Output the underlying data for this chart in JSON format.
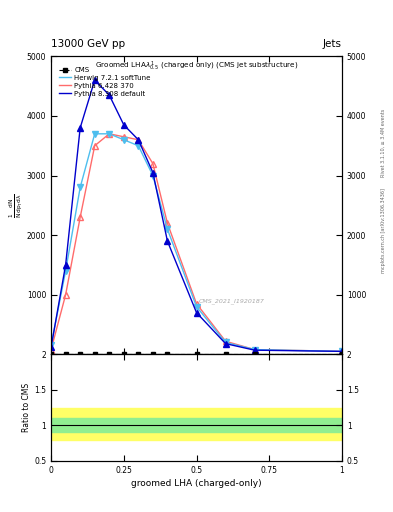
{
  "title_top": "13000 GeV pp",
  "title_right": "Jets",
  "watermark": "CMS_2021_I1920187",
  "xlabel": "groomed LHA (charged-only)",
  "ylabel_ratio": "Ratio to CMS",
  "right_label": "Rivet 3.1.10, ≥ 3.4M events",
  "right_label2": "mcplots.cern.ch [arXiv:1306.3436]",
  "x_plot": [
    0.0,
    0.05,
    0.1,
    0.15,
    0.2,
    0.25,
    0.3,
    0.35,
    0.4,
    0.5,
    0.6,
    0.7,
    1.0
  ],
  "herwig_y": [
    150,
    1400,
    2800,
    3700,
    3700,
    3600,
    3500,
    3000,
    2100,
    800,
    200,
    80,
    50
  ],
  "pythia6_y": [
    80,
    1000,
    2300,
    3500,
    3700,
    3650,
    3600,
    3200,
    2200,
    850,
    220,
    80,
    50
  ],
  "pythia8_y": [
    120,
    1500,
    3800,
    4600,
    4350,
    3850,
    3600,
    3050,
    1900,
    700,
    180,
    70,
    50
  ],
  "ylim_main": [
    0,
    5000
  ],
  "ylim_ratio": [
    0.5,
    2.0
  ],
  "cms_color": "#000000",
  "herwig_color": "#4DBEEE",
  "pythia6_color": "#FF6B6B",
  "pythia8_color": "#0000CC",
  "cms_label": "CMS",
  "herwig_label": "Herwig 7.2.1 softTune",
  "pythia6_label": "Pythia 6.428 370",
  "pythia8_label": "Pythia 8.308 default",
  "ratio_green_band_lo": 0.9,
  "ratio_green_band_hi": 1.1,
  "ratio_yellow_band_lo": 0.8,
  "ratio_yellow_band_hi": 1.25,
  "green_color": "#90EE90",
  "yellow_color": "#FFFF66"
}
